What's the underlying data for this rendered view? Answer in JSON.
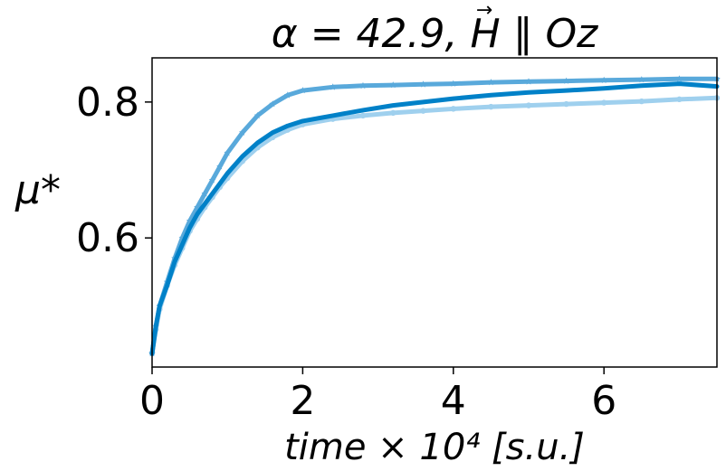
{
  "chart_data": {
    "type": "line",
    "title": "α = 42.9, H ∥ Oz",
    "title_vector_symbol": "→",
    "xlabel": "time × 10⁴ [s.u.]",
    "ylabel": "μ*",
    "xlim": [
      0,
      7.5
    ],
    "ylim": [
      0.41,
      0.865
    ],
    "xticks": [
      0,
      2,
      4,
      6
    ],
    "xtick_labels": [
      "0",
      "2",
      "4",
      "6"
    ],
    "yticks": [
      0.6,
      0.8
    ],
    "ytick_labels": [
      "0.6",
      "0.8"
    ],
    "grid": false,
    "legend": "none",
    "series": [
      {
        "color": "#0081c8",
        "marker": "none",
        "x": [
          0,
          0.05,
          0.1,
          0.2,
          0.3,
          0.4,
          0.5,
          0.6,
          0.7,
          0.8,
          0.9,
          1.0,
          1.2,
          1.4,
          1.6,
          1.8,
          2.0,
          2.4,
          2.8,
          3.2,
          3.6,
          4.0,
          4.5,
          5.0,
          5.5,
          6.0,
          6.5,
          7.0,
          7.5
        ],
        "y": [
          0.43,
          0.47,
          0.5,
          0.53,
          0.565,
          0.59,
          0.615,
          0.635,
          0.65,
          0.665,
          0.68,
          0.695,
          0.72,
          0.74,
          0.755,
          0.765,
          0.772,
          0.78,
          0.788,
          0.795,
          0.8,
          0.805,
          0.81,
          0.814,
          0.817,
          0.82,
          0.824,
          0.827,
          0.823
        ]
      },
      {
        "color": "#59a9db",
        "marker": "star",
        "x": [
          0,
          0.05,
          0.1,
          0.2,
          0.3,
          0.4,
          0.5,
          0.6,
          0.7,
          0.8,
          0.9,
          1.0,
          1.2,
          1.4,
          1.6,
          1.8,
          2.0,
          2.4,
          2.8,
          3.2,
          3.6,
          4.0,
          4.5,
          5.0,
          5.5,
          6.0,
          6.5,
          7.0,
          7.5
        ],
        "y": [
          0.43,
          0.47,
          0.5,
          0.535,
          0.57,
          0.6,
          0.625,
          0.645,
          0.665,
          0.685,
          0.705,
          0.725,
          0.755,
          0.78,
          0.797,
          0.81,
          0.817,
          0.822,
          0.824,
          0.825,
          0.826,
          0.827,
          0.829,
          0.83,
          0.831,
          0.832,
          0.833,
          0.834,
          0.834
        ]
      },
      {
        "color": "#9fd0ee",
        "marker": "circle",
        "x": [
          0,
          0.05,
          0.1,
          0.2,
          0.3,
          0.4,
          0.5,
          0.6,
          0.7,
          0.8,
          0.9,
          1.0,
          1.2,
          1.4,
          1.6,
          1.8,
          2.0,
          2.4,
          2.8,
          3.2,
          3.6,
          4.0,
          4.5,
          5.0,
          5.5,
          6.0,
          6.5,
          7.0,
          7.5
        ],
        "y": [
          0.43,
          0.465,
          0.495,
          0.53,
          0.56,
          0.585,
          0.61,
          0.628,
          0.645,
          0.66,
          0.675,
          0.688,
          0.713,
          0.733,
          0.748,
          0.759,
          0.767,
          0.775,
          0.78,
          0.784,
          0.787,
          0.79,
          0.793,
          0.795,
          0.797,
          0.799,
          0.801,
          0.804,
          0.806
        ]
      }
    ]
  }
}
